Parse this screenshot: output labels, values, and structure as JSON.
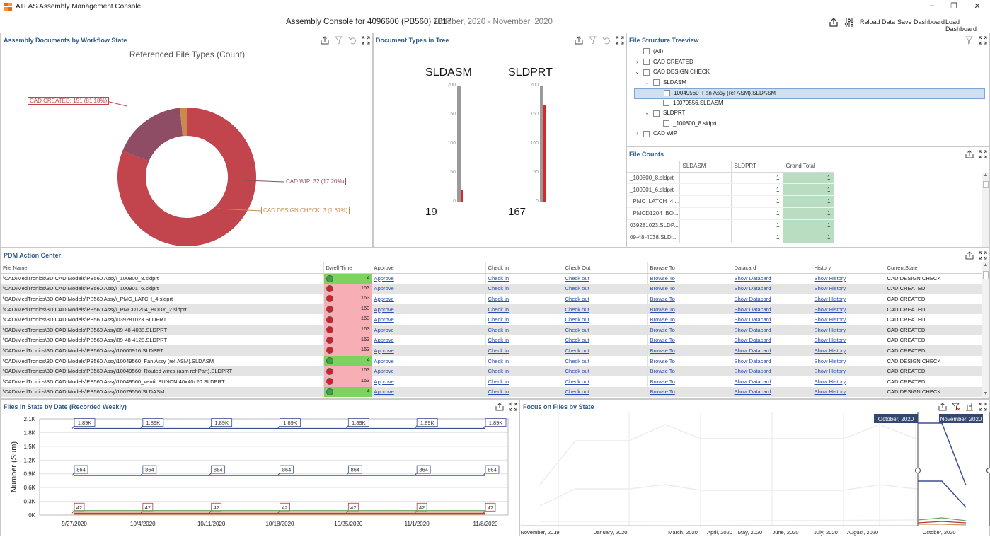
{
  "app": {
    "window_title": "ATLAS Assembly Management Console",
    "title": "Assembly Console for 4096600 (PB560) 2017",
    "date_range": "October, 2020 - November, 2020",
    "toolbar": {
      "reload": "Reload Data",
      "save": "Save Dashboard",
      "load": "Load Dashboard"
    }
  },
  "panels": {
    "workflow": "Assembly Documents by Workflow State",
    "doc_types": "Document Types in Tree",
    "treeview": "File Structure Treeview",
    "file_counts": "File Counts",
    "action_center": "PDM Action Center",
    "files_by_date": "Files in State by Date (Recorded Weekly)",
    "focus": "Focus on Files by State"
  },
  "donut": {
    "title": "Referenced File Types (Count)",
    "slices": [
      {
        "label": "CAD CREATED: 151 (81.18%)",
        "value": 151,
        "color": "#c2444c"
      },
      {
        "label": "CAD WIP: 32 (17.20%)",
        "value": 32,
        "color": "#8e4d64"
      },
      {
        "label": "CAD DESIGN CHECK: 3 (1.61%)",
        "value": 3,
        "color": "#c98a50"
      }
    ]
  },
  "gauges": [
    {
      "name": "SLDASM",
      "value": "19",
      "num": 19
    },
    {
      "name": "SLDPRT",
      "value": "167",
      "num": 167
    }
  ],
  "gauge_ticks": [
    "200",
    "150",
    "100",
    "50",
    "0"
  ],
  "tree": [
    {
      "label": "(All)",
      "level": 0,
      "toggle": ""
    },
    {
      "label": "CAD CREATED",
      "level": 0,
      "toggle": "›"
    },
    {
      "label": "CAD DESIGN CHECK",
      "level": 0,
      "toggle": "⌄"
    },
    {
      "label": "SLDASM",
      "level": 1,
      "toggle": "⌄"
    },
    {
      "label": "10049560_Fan Assy (ref ASM).SLDASM",
      "level": 2,
      "toggle": "",
      "selected": true
    },
    {
      "label": "10079556.SLDASM",
      "level": 2,
      "toggle": ""
    },
    {
      "label": "SLDPRT",
      "level": 1,
      "toggle": "⌄"
    },
    {
      "label": "_100800_8.sldprt",
      "level": 2,
      "toggle": ""
    },
    {
      "label": "CAD WIP",
      "level": 0,
      "toggle": "›"
    }
  ],
  "file_counts": {
    "headers": [
      "",
      "SLDASM",
      "SLDPRT",
      "Grand Total"
    ],
    "rows": [
      [
        "_100800_8.sldprt",
        "",
        "1",
        "1"
      ],
      [
        "_100901_6.sldprt",
        "",
        "1",
        "1"
      ],
      [
        "_PMC_LATCH_4....",
        "",
        "1",
        "1"
      ],
      [
        "_PMCD1204_BO...",
        "",
        "1",
        "1"
      ],
      [
        "039281023.SLDP...",
        "",
        "1",
        "1"
      ],
      [
        "09-48-4038.SLD...",
        "",
        "1",
        "1"
      ]
    ]
  },
  "actions": {
    "headers": [
      "File Name",
      "Dwell Time",
      "Approve",
      "Check in",
      "Check Out",
      "Browse To",
      "Datacard",
      "History",
      "CurrentState"
    ],
    "links": [
      "Approve",
      "Check in",
      "Check out",
      "Browse To",
      "Show Datacard",
      "Show History"
    ],
    "rows": [
      {
        "file": "\\CAD\\MedTronics\\3D CAD Models\\PB560 Assy\\_100800_8.sldprt",
        "dwell": "4",
        "ok": true,
        "state": "CAD DESIGN CHECK"
      },
      {
        "file": "\\CAD\\MedTronics\\3D CAD Models\\PB560 Assy\\_100901_6.sldprt",
        "dwell": "163",
        "ok": false,
        "state": "CAD CREATED"
      },
      {
        "file": "\\CAD\\MedTronics\\3D CAD Models\\PB560 Assy\\_PMC_LATCH_4.sldprt",
        "dwell": "163",
        "ok": false,
        "state": "CAD CREATED"
      },
      {
        "file": "\\CAD\\MedTronics\\3D CAD Models\\PB560 Assy\\_PMCD1204_BODY_2.sldprt",
        "dwell": "163",
        "ok": false,
        "state": "CAD CREATED"
      },
      {
        "file": "\\CAD\\MedTronics\\3D CAD Models\\PB560 Assy\\039281023.SLDPRT",
        "dwell": "163",
        "ok": false,
        "state": "CAD CREATED"
      },
      {
        "file": "\\CAD\\MedTronics\\3D CAD Models\\PB560 Assy\\09-48-4038.SLDPRT",
        "dwell": "163",
        "ok": false,
        "state": "CAD CREATED"
      },
      {
        "file": "\\CAD\\MedTronics\\3D CAD Models\\PB560 Assy\\09-48-4128.SLDPRT",
        "dwell": "163",
        "ok": false,
        "state": "CAD CREATED"
      },
      {
        "file": "\\CAD\\MedTronics\\3D CAD Models\\PB560 Assy\\10000916.SLDPRT",
        "dwell": "163",
        "ok": false,
        "state": "CAD CREATED"
      },
      {
        "file": "\\CAD\\MedTronics\\3D CAD Models\\PB560 Assy\\10049560_Fan Assy (ref ASM).SLDASM",
        "dwell": "4",
        "ok": true,
        "state": "CAD DESIGN CHECK"
      },
      {
        "file": "\\CAD\\MedTronics\\3D CAD Models\\PB560 Assy\\10049560_Routed wires (asm ref Part).SLDPRT",
        "dwell": "163",
        "ok": false,
        "state": "CAD CREATED"
      },
      {
        "file": "\\CAD\\MedTronics\\3D CAD Models\\PB560 Assy\\10049560_ventil SUNON 40x40x20.SLDPRT",
        "dwell": "163",
        "ok": false,
        "state": "CAD CREATED"
      },
      {
        "file": "\\CAD\\MedTronics\\3D CAD Models\\PB560 Assy\\10079556.SLDASM",
        "dwell": "4",
        "ok": true,
        "state": "CAD DESIGN CHECK"
      }
    ]
  },
  "chart_data": [
    {
      "type": "line",
      "title": "Files in State by Date (Recorded Weekly)",
      "ylabel": "Number (Sum)",
      "ylim": [
        0,
        2100
      ],
      "yticks": [
        "2.1K",
        "1.8K",
        "1.5K",
        "1.2K",
        "0.9K",
        "0.6K",
        "0.3K",
        "0K"
      ],
      "x": [
        "9/27/2020",
        "10/4/2020",
        "10/11/2020",
        "10/18/2020",
        "10/25/2020",
        "11/1/2020",
        "11/8/2020"
      ],
      "series": [
        {
          "values": [
            1890,
            1890,
            1890,
            1890,
            1890,
            1890,
            1890
          ],
          "labels": [
            "1.89K",
            "1.89K",
            "1.89K",
            "1.89K",
            "1.89K",
            "1.89K",
            "1.89K"
          ],
          "color": "#3d4f8f"
        },
        {
          "values": [
            864,
            864,
            864,
            864,
            864,
            864,
            864
          ],
          "labels": [
            "864",
            "864",
            "864",
            "864",
            "864",
            "864",
            "864"
          ],
          "color": "#3d4f8f"
        },
        {
          "values": [
            42,
            42,
            42,
            42,
            42,
            42,
            42
          ],
          "labels": [
            "42",
            "42",
            "42",
            "42",
            "42",
            "42",
            "42"
          ],
          "color": "#b83a3a"
        },
        {
          "values": [
            95,
            95,
            95,
            95,
            95,
            95,
            95
          ],
          "color": "#6aa15d"
        },
        {
          "values": [
            15,
            15,
            15,
            15,
            15,
            15,
            15
          ],
          "color": "#c9975a"
        }
      ],
      "grid": true,
      "legend": "none"
    },
    {
      "type": "line",
      "title": "Focus on Files by State",
      "x": [
        "November, 2019",
        "January, 2020",
        "March, 2020",
        "April, 2020",
        "May, 2020",
        "June, 2020",
        "July, 2020",
        "August, 2020",
        "October, 2020"
      ],
      "range_labels": [
        "October, 2020",
        "November, 2020"
      ],
      "grid": true,
      "legend": "none"
    }
  ]
}
